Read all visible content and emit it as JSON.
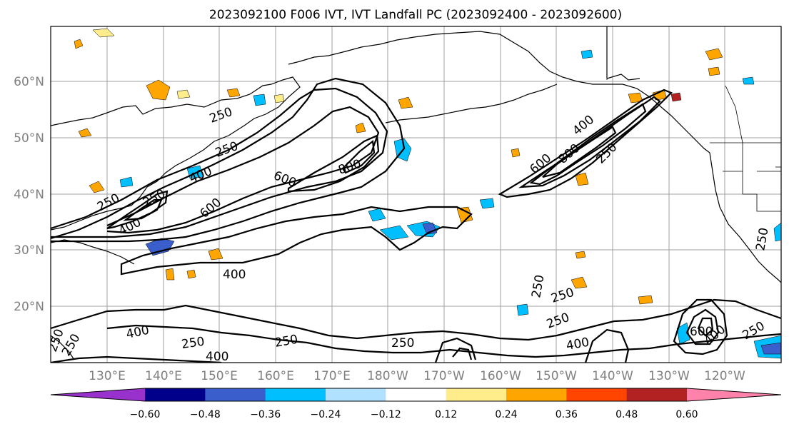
{
  "title": "2023092100 F006 IVT, IVT Landfall PC (2023092400 - 2023092600)",
  "lat_labels": [
    "60°N",
    "50°N",
    "40°N",
    "30°N",
    "20°N"
  ],
  "lon_labels": [
    "130°E",
    "140°E",
    "150°E",
    "160°E",
    "170°E",
    "180°W",
    "170°W",
    "160°W",
    "150°W",
    "140°W",
    "130°W",
    "120°W"
  ],
  "contour_labels": [
    "250",
    "250",
    "250",
    "400",
    "400",
    "400",
    "400",
    "400",
    "400",
    "250",
    "250",
    "250",
    "250",
    "250",
    "600",
    "600",
    "600",
    "800",
    "800",
    "400",
    "250",
    "250",
    "250",
    "250",
    "250",
    "600",
    "400",
    "250",
    "250"
  ],
  "colorbar": {
    "ticks": [
      "−0.60",
      "−0.48",
      "−0.36",
      "−0.24",
      "−0.12",
      "0.12",
      "0.24",
      "0.36",
      "0.48",
      "0.60"
    ],
    "colors": [
      "#9932cc",
      "#00008b",
      "#3a5fcd",
      "#00bfff",
      "#b0e2ff",
      "#ffffff",
      "#ffec8b",
      "#ffa500",
      "#ff4500",
      "#b22222",
      "#ff82ab"
    ]
  },
  "map": {
    "projection": "equirectangular",
    "lon_range": [
      122,
      252
    ],
    "lat_range": [
      10,
      70
    ],
    "gridlines": true,
    "fields": [
      "IVT contours (black)",
      "IVT landfall PC (shaded)"
    ]
  }
}
